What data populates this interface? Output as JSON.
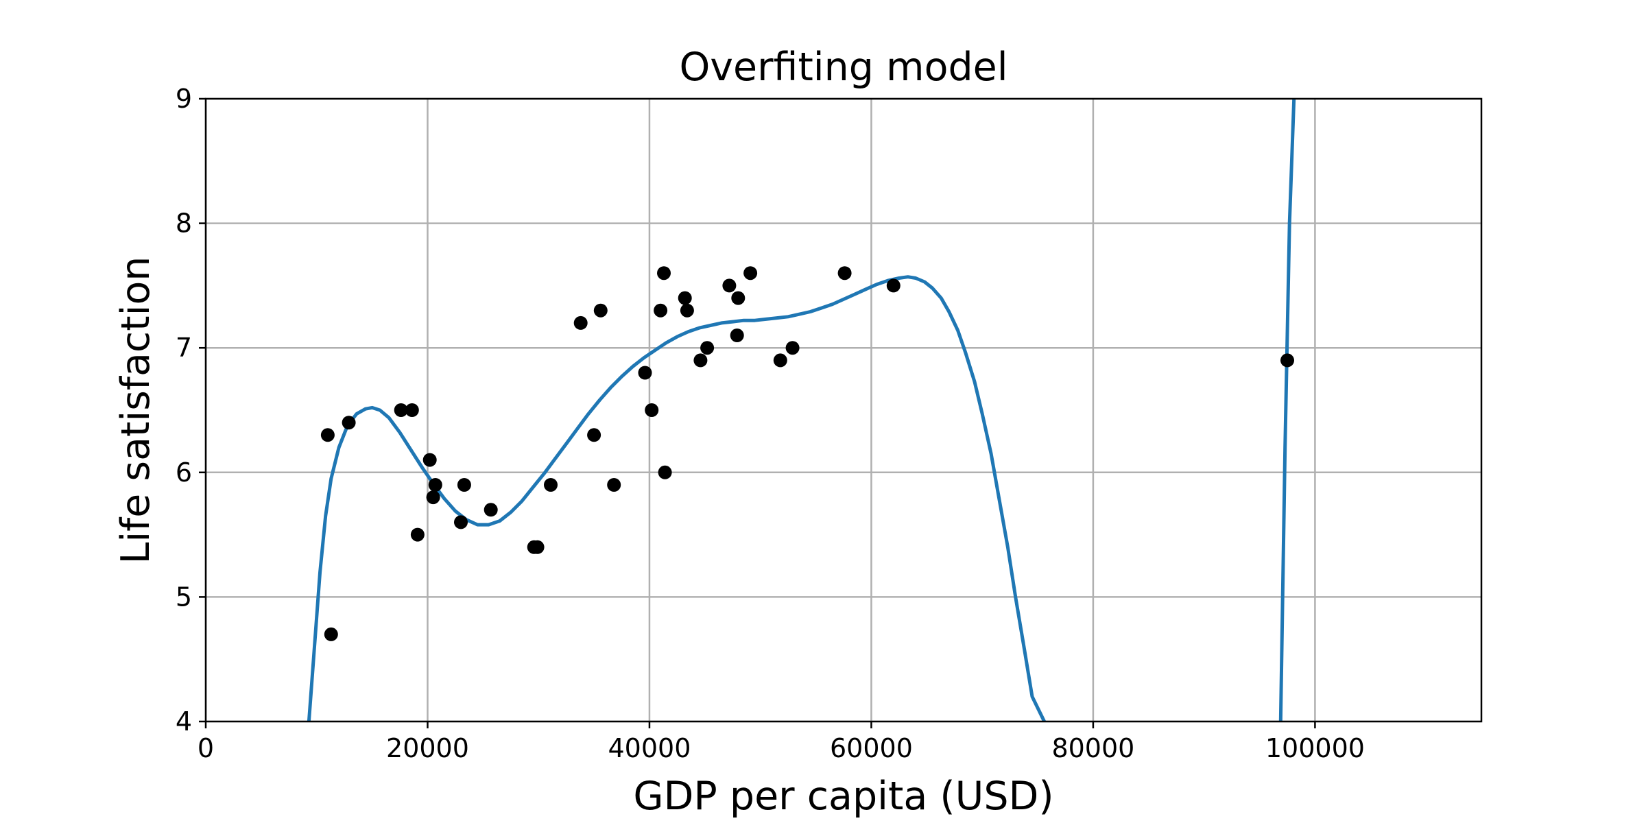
{
  "chart_data": {
    "type": "scatter",
    "title": "Overfiting model",
    "xlabel": "GDP per capita (USD)",
    "ylabel": "Life satisfaction",
    "xlim": [
      0,
      115000
    ],
    "ylim": [
      4,
      9
    ],
    "x_ticks": [
      0,
      20000,
      40000,
      60000,
      80000,
      100000
    ],
    "y_ticks": [
      4,
      5,
      6,
      7,
      8,
      9
    ],
    "grid": true,
    "legend": "none",
    "colors": {
      "points": "#000000",
      "curve": "#1f77b4",
      "grid": "#b0b0b0"
    },
    "series": [
      {
        "kind": "scatter",
        "points": [
          [
            11000,
            6.3
          ],
          [
            11300,
            4.7
          ],
          [
            12900,
            6.4
          ],
          [
            17600,
            6.5
          ],
          [
            18600,
            6.5
          ],
          [
            19100,
            5.5
          ],
          [
            20200,
            6.1
          ],
          [
            20500,
            5.8
          ],
          [
            20700,
            5.9
          ],
          [
            23000,
            5.6
          ],
          [
            23300,
            5.9
          ],
          [
            25700,
            5.7
          ],
          [
            29600,
            5.4
          ],
          [
            29900,
            5.4
          ],
          [
            31100,
            5.9
          ],
          [
            33800,
            7.2
          ],
          [
            35000,
            6.3
          ],
          [
            35600,
            7.3
          ],
          [
            36800,
            5.9
          ],
          [
            39600,
            6.8
          ],
          [
            40200,
            6.5
          ],
          [
            41000,
            7.3
          ],
          [
            41300,
            7.6
          ],
          [
            41400,
            6.0
          ],
          [
            43200,
            7.4
          ],
          [
            43400,
            7.3
          ],
          [
            44600,
            6.9
          ],
          [
            45200,
            7.0
          ],
          [
            47200,
            7.5
          ],
          [
            47900,
            7.1
          ],
          [
            48000,
            7.4
          ],
          [
            49100,
            7.6
          ],
          [
            51800,
            6.9
          ],
          [
            52900,
            7.0
          ],
          [
            57600,
            7.6
          ],
          [
            62000,
            7.5
          ],
          [
            97500,
            6.9
          ]
        ]
      },
      {
        "kind": "line",
        "points": [
          [
            9300,
            4.0
          ],
          [
            9800,
            4.6
          ],
          [
            10300,
            5.2
          ],
          [
            10800,
            5.65
          ],
          [
            11300,
            5.95
          ],
          [
            12000,
            6.2
          ],
          [
            12800,
            6.38
          ],
          [
            13600,
            6.47
          ],
          [
            14400,
            6.51
          ],
          [
            15000,
            6.52
          ],
          [
            15700,
            6.5
          ],
          [
            16500,
            6.44
          ],
          [
            17500,
            6.32
          ],
          [
            18500,
            6.18
          ],
          [
            19500,
            6.04
          ],
          [
            20500,
            5.91
          ],
          [
            21500,
            5.79
          ],
          [
            22500,
            5.69
          ],
          [
            23500,
            5.62
          ],
          [
            24500,
            5.58
          ],
          [
            25500,
            5.58
          ],
          [
            26500,
            5.61
          ],
          [
            27500,
            5.68
          ],
          [
            28500,
            5.77
          ],
          [
            29500,
            5.88
          ],
          [
            30500,
            5.99
          ],
          [
            31500,
            6.11
          ],
          [
            32500,
            6.23
          ],
          [
            33500,
            6.35
          ],
          [
            34500,
            6.47
          ],
          [
            35500,
            6.58
          ],
          [
            36500,
            6.68
          ],
          [
            37500,
            6.77
          ],
          [
            38500,
            6.85
          ],
          [
            39500,
            6.92
          ],
          [
            40500,
            6.98
          ],
          [
            41500,
            7.04
          ],
          [
            42500,
            7.09
          ],
          [
            43500,
            7.13
          ],
          [
            44500,
            7.16
          ],
          [
            45500,
            7.18
          ],
          [
            46500,
            7.2
          ],
          [
            47500,
            7.21
          ],
          [
            48500,
            7.22
          ],
          [
            49500,
            7.22
          ],
          [
            50500,
            7.23
          ],
          [
            51500,
            7.24
          ],
          [
            52500,
            7.25
          ],
          [
            53500,
            7.27
          ],
          [
            54500,
            7.29
          ],
          [
            55500,
            7.32
          ],
          [
            56500,
            7.35
          ],
          [
            57500,
            7.39
          ],
          [
            58500,
            7.43
          ],
          [
            59500,
            7.47
          ],
          [
            60500,
            7.51
          ],
          [
            61500,
            7.54
          ],
          [
            62500,
            7.56
          ],
          [
            63300,
            7.57
          ],
          [
            64000,
            7.56
          ],
          [
            64800,
            7.53
          ],
          [
            65500,
            7.48
          ],
          [
            66300,
            7.4
          ],
          [
            67000,
            7.29
          ],
          [
            67800,
            7.14
          ],
          [
            68500,
            6.96
          ],
          [
            69300,
            6.73
          ],
          [
            70000,
            6.47
          ],
          [
            70800,
            6.15
          ],
          [
            71500,
            5.8
          ],
          [
            72300,
            5.4
          ],
          [
            73000,
            5.0
          ],
          [
            73800,
            4.58
          ],
          [
            74500,
            4.2
          ],
          [
            75600,
            4.0
          ]
        ]
      },
      {
        "kind": "line",
        "points": [
          [
            96900,
            4.0
          ],
          [
            97300,
            6.2
          ],
          [
            97700,
            8.0
          ],
          [
            98100,
            9.0
          ]
        ]
      }
    ]
  }
}
